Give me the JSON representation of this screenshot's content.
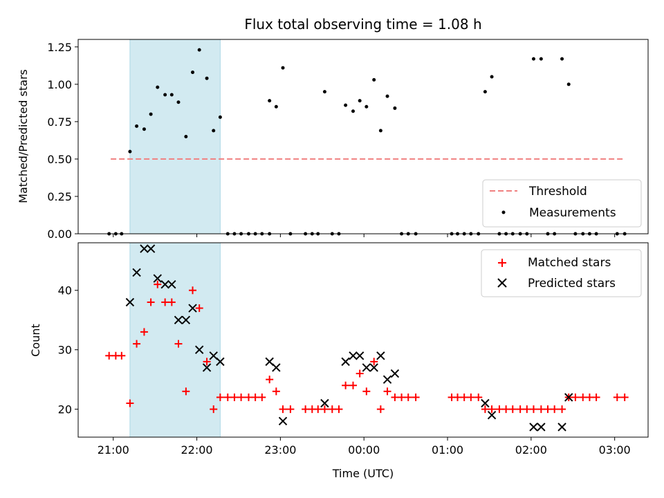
{
  "chart_data": [
    {
      "type": "scatter",
      "title": "Flux total observing time = 1.08 h",
      "xlabel": "",
      "ylabel": "Matched/Predicted stars",
      "xlim": [
        20.58,
        27.4
      ],
      "ylim": [
        0,
        1.3
      ],
      "yticks": [
        0,
        0.25,
        0.5,
        0.75,
        1.0,
        1.25
      ],
      "ytick_labels": [
        "0.00",
        "0.25",
        "0.50",
        "0.75",
        "1.00",
        "1.25"
      ],
      "xticks": [
        21,
        22,
        23,
        24,
        25,
        26,
        27
      ],
      "show_xtick_labels": false,
      "grid": false,
      "legend_location": "lower right",
      "shaded_span": {
        "x0": 21.2,
        "x1": 22.28,
        "color": "#add8e6"
      },
      "threshold": {
        "name": "Threshold",
        "y": 0.5,
        "x0": 20.97,
        "x1": 27.12,
        "color": "#f08080"
      },
      "series": [
        {
          "name": "Measurements",
          "color": "#000000",
          "marker": "dot",
          "points": [
            [
              20.95,
              0.0
            ],
            [
              21.03,
              0.0
            ],
            [
              21.1,
              0.0
            ],
            [
              21.2,
              0.55
            ],
            [
              21.28,
              0.72
            ],
            [
              21.37,
              0.7
            ],
            [
              21.45,
              0.8
            ],
            [
              21.53,
              0.98
            ],
            [
              21.62,
              0.93
            ],
            [
              21.7,
              0.93
            ],
            [
              21.78,
              0.88
            ],
            [
              21.87,
              0.65
            ],
            [
              21.95,
              1.08
            ],
            [
              22.03,
              1.23
            ],
            [
              22.12,
              1.04
            ],
            [
              22.2,
              0.69
            ],
            [
              22.28,
              0.78
            ],
            [
              22.37,
              0.0
            ],
            [
              22.45,
              0.0
            ],
            [
              22.53,
              0.0
            ],
            [
              22.62,
              0.0
            ],
            [
              22.7,
              0.0
            ],
            [
              22.78,
              0.0
            ],
            [
              22.87,
              0.0
            ],
            [
              22.87,
              0.89
            ],
            [
              22.95,
              0.85
            ],
            [
              23.03,
              1.11
            ],
            [
              23.12,
              0.0
            ],
            [
              23.3,
              0.0
            ],
            [
              23.38,
              0.0
            ],
            [
              23.45,
              0.0
            ],
            [
              23.53,
              0.95
            ],
            [
              23.62,
              0.0
            ],
            [
              23.7,
              0.0
            ],
            [
              23.78,
              0.86
            ],
            [
              23.87,
              0.82
            ],
            [
              23.95,
              0.89
            ],
            [
              24.03,
              0.85
            ],
            [
              24.12,
              1.03
            ],
            [
              24.2,
              0.69
            ],
            [
              24.28,
              0.92
            ],
            [
              24.37,
              0.84
            ],
            [
              24.45,
              0.0
            ],
            [
              24.53,
              0.0
            ],
            [
              24.62,
              0.0
            ],
            [
              25.05,
              0.0
            ],
            [
              25.12,
              0.0
            ],
            [
              25.2,
              0.0
            ],
            [
              25.28,
              0.0
            ],
            [
              25.37,
              0.0
            ],
            [
              25.45,
              0.95
            ],
            [
              25.53,
              1.05
            ],
            [
              25.62,
              0.0
            ],
            [
              25.7,
              0.0
            ],
            [
              25.78,
              0.0
            ],
            [
              25.87,
              0.0
            ],
            [
              25.95,
              0.0
            ],
            [
              26.03,
              1.17
            ],
            [
              26.12,
              1.17
            ],
            [
              26.2,
              0.0
            ],
            [
              26.28,
              0.0
            ],
            [
              26.37,
              1.17
            ],
            [
              26.45,
              1.0
            ],
            [
              26.53,
              0.0
            ],
            [
              26.62,
              0.0
            ],
            [
              26.7,
              0.0
            ],
            [
              26.78,
              0.0
            ],
            [
              27.03,
              0.0
            ],
            [
              27.12,
              0.0
            ]
          ]
        }
      ]
    },
    {
      "type": "scatter",
      "title": "",
      "xlabel": "Time (UTC)",
      "ylabel": "Count",
      "xlim": [
        20.58,
        27.4
      ],
      "ylim": [
        15.3,
        48
      ],
      "yticks": [
        20,
        30,
        40
      ],
      "ytick_labels": [
        "20",
        "30",
        "40"
      ],
      "xticks": [
        21,
        22,
        23,
        24,
        25,
        26,
        27
      ],
      "xtick_labels": [
        "21:00",
        "22:00",
        "23:00",
        "00:00",
        "01:00",
        "02:00",
        "03:00"
      ],
      "grid": false,
      "legend_location": "upper right",
      "shaded_span": {
        "x0": 21.2,
        "x1": 22.28,
        "color": "#add8e6"
      },
      "series": [
        {
          "name": "Matched stars",
          "color": "#ff0000",
          "marker": "plus",
          "points": [
            [
              20.95,
              29
            ],
            [
              21.03,
              29
            ],
            [
              21.1,
              29
            ],
            [
              21.2,
              21
            ],
            [
              21.28,
              31
            ],
            [
              21.37,
              33
            ],
            [
              21.45,
              38
            ],
            [
              21.53,
              41
            ],
            [
              21.62,
              38
            ],
            [
              21.7,
              38
            ],
            [
              21.78,
              31
            ],
            [
              21.87,
              23
            ],
            [
              21.95,
              40
            ],
            [
              22.03,
              37
            ],
            [
              22.12,
              28
            ],
            [
              22.2,
              20
            ],
            [
              22.28,
              22
            ],
            [
              22.37,
              22
            ],
            [
              22.45,
              22
            ],
            [
              22.53,
              22
            ],
            [
              22.62,
              22
            ],
            [
              22.7,
              22
            ],
            [
              22.78,
              22
            ],
            [
              22.87,
              25
            ],
            [
              22.95,
              23
            ],
            [
              23.03,
              20
            ],
            [
              23.12,
              20
            ],
            [
              23.3,
              20
            ],
            [
              23.38,
              20
            ],
            [
              23.45,
              20
            ],
            [
              23.53,
              20
            ],
            [
              23.62,
              20
            ],
            [
              23.7,
              20
            ],
            [
              23.78,
              24
            ],
            [
              23.87,
              24
            ],
            [
              23.95,
              26
            ],
            [
              24.03,
              23
            ],
            [
              24.12,
              28
            ],
            [
              24.2,
              20
            ],
            [
              24.28,
              23
            ],
            [
              24.37,
              22
            ],
            [
              24.45,
              22
            ],
            [
              24.53,
              22
            ],
            [
              24.62,
              22
            ],
            [
              25.05,
              22
            ],
            [
              25.12,
              22
            ],
            [
              25.2,
              22
            ],
            [
              25.28,
              22
            ],
            [
              25.37,
              22
            ],
            [
              25.45,
              20
            ],
            [
              25.53,
              20
            ],
            [
              25.62,
              20
            ],
            [
              25.7,
              20
            ],
            [
              25.78,
              20
            ],
            [
              25.87,
              20
            ],
            [
              25.95,
              20
            ],
            [
              26.03,
              20
            ],
            [
              26.12,
              20
            ],
            [
              26.2,
              20
            ],
            [
              26.28,
              20
            ],
            [
              26.37,
              20
            ],
            [
              26.45,
              22
            ],
            [
              26.53,
              22
            ],
            [
              26.62,
              22
            ],
            [
              26.7,
              22
            ],
            [
              26.78,
              22
            ],
            [
              27.03,
              22
            ],
            [
              27.12,
              22
            ]
          ]
        },
        {
          "name": "Predicted stars",
          "color": "#000000",
          "marker": "cross",
          "points": [
            [
              21.2,
              38
            ],
            [
              21.28,
              43
            ],
            [
              21.37,
              47
            ],
            [
              21.45,
              47
            ],
            [
              21.53,
              42
            ],
            [
              21.62,
              41
            ],
            [
              21.7,
              41
            ],
            [
              21.78,
              35
            ],
            [
              21.87,
              35
            ],
            [
              21.95,
              37
            ],
            [
              22.03,
              30
            ],
            [
              22.12,
              27
            ],
            [
              22.2,
              29
            ],
            [
              22.28,
              28
            ],
            [
              22.87,
              28
            ],
            [
              22.95,
              27
            ],
            [
              23.03,
              18
            ],
            [
              23.53,
              21
            ],
            [
              23.78,
              28
            ],
            [
              23.87,
              29
            ],
            [
              23.95,
              29
            ],
            [
              24.03,
              27
            ],
            [
              24.12,
              27
            ],
            [
              24.2,
              29
            ],
            [
              24.28,
              25
            ],
            [
              24.37,
              26
            ],
            [
              25.45,
              21
            ],
            [
              25.53,
              19
            ],
            [
              26.03,
              17
            ],
            [
              26.12,
              17
            ],
            [
              26.37,
              17
            ],
            [
              26.45,
              22
            ]
          ]
        }
      ]
    }
  ]
}
